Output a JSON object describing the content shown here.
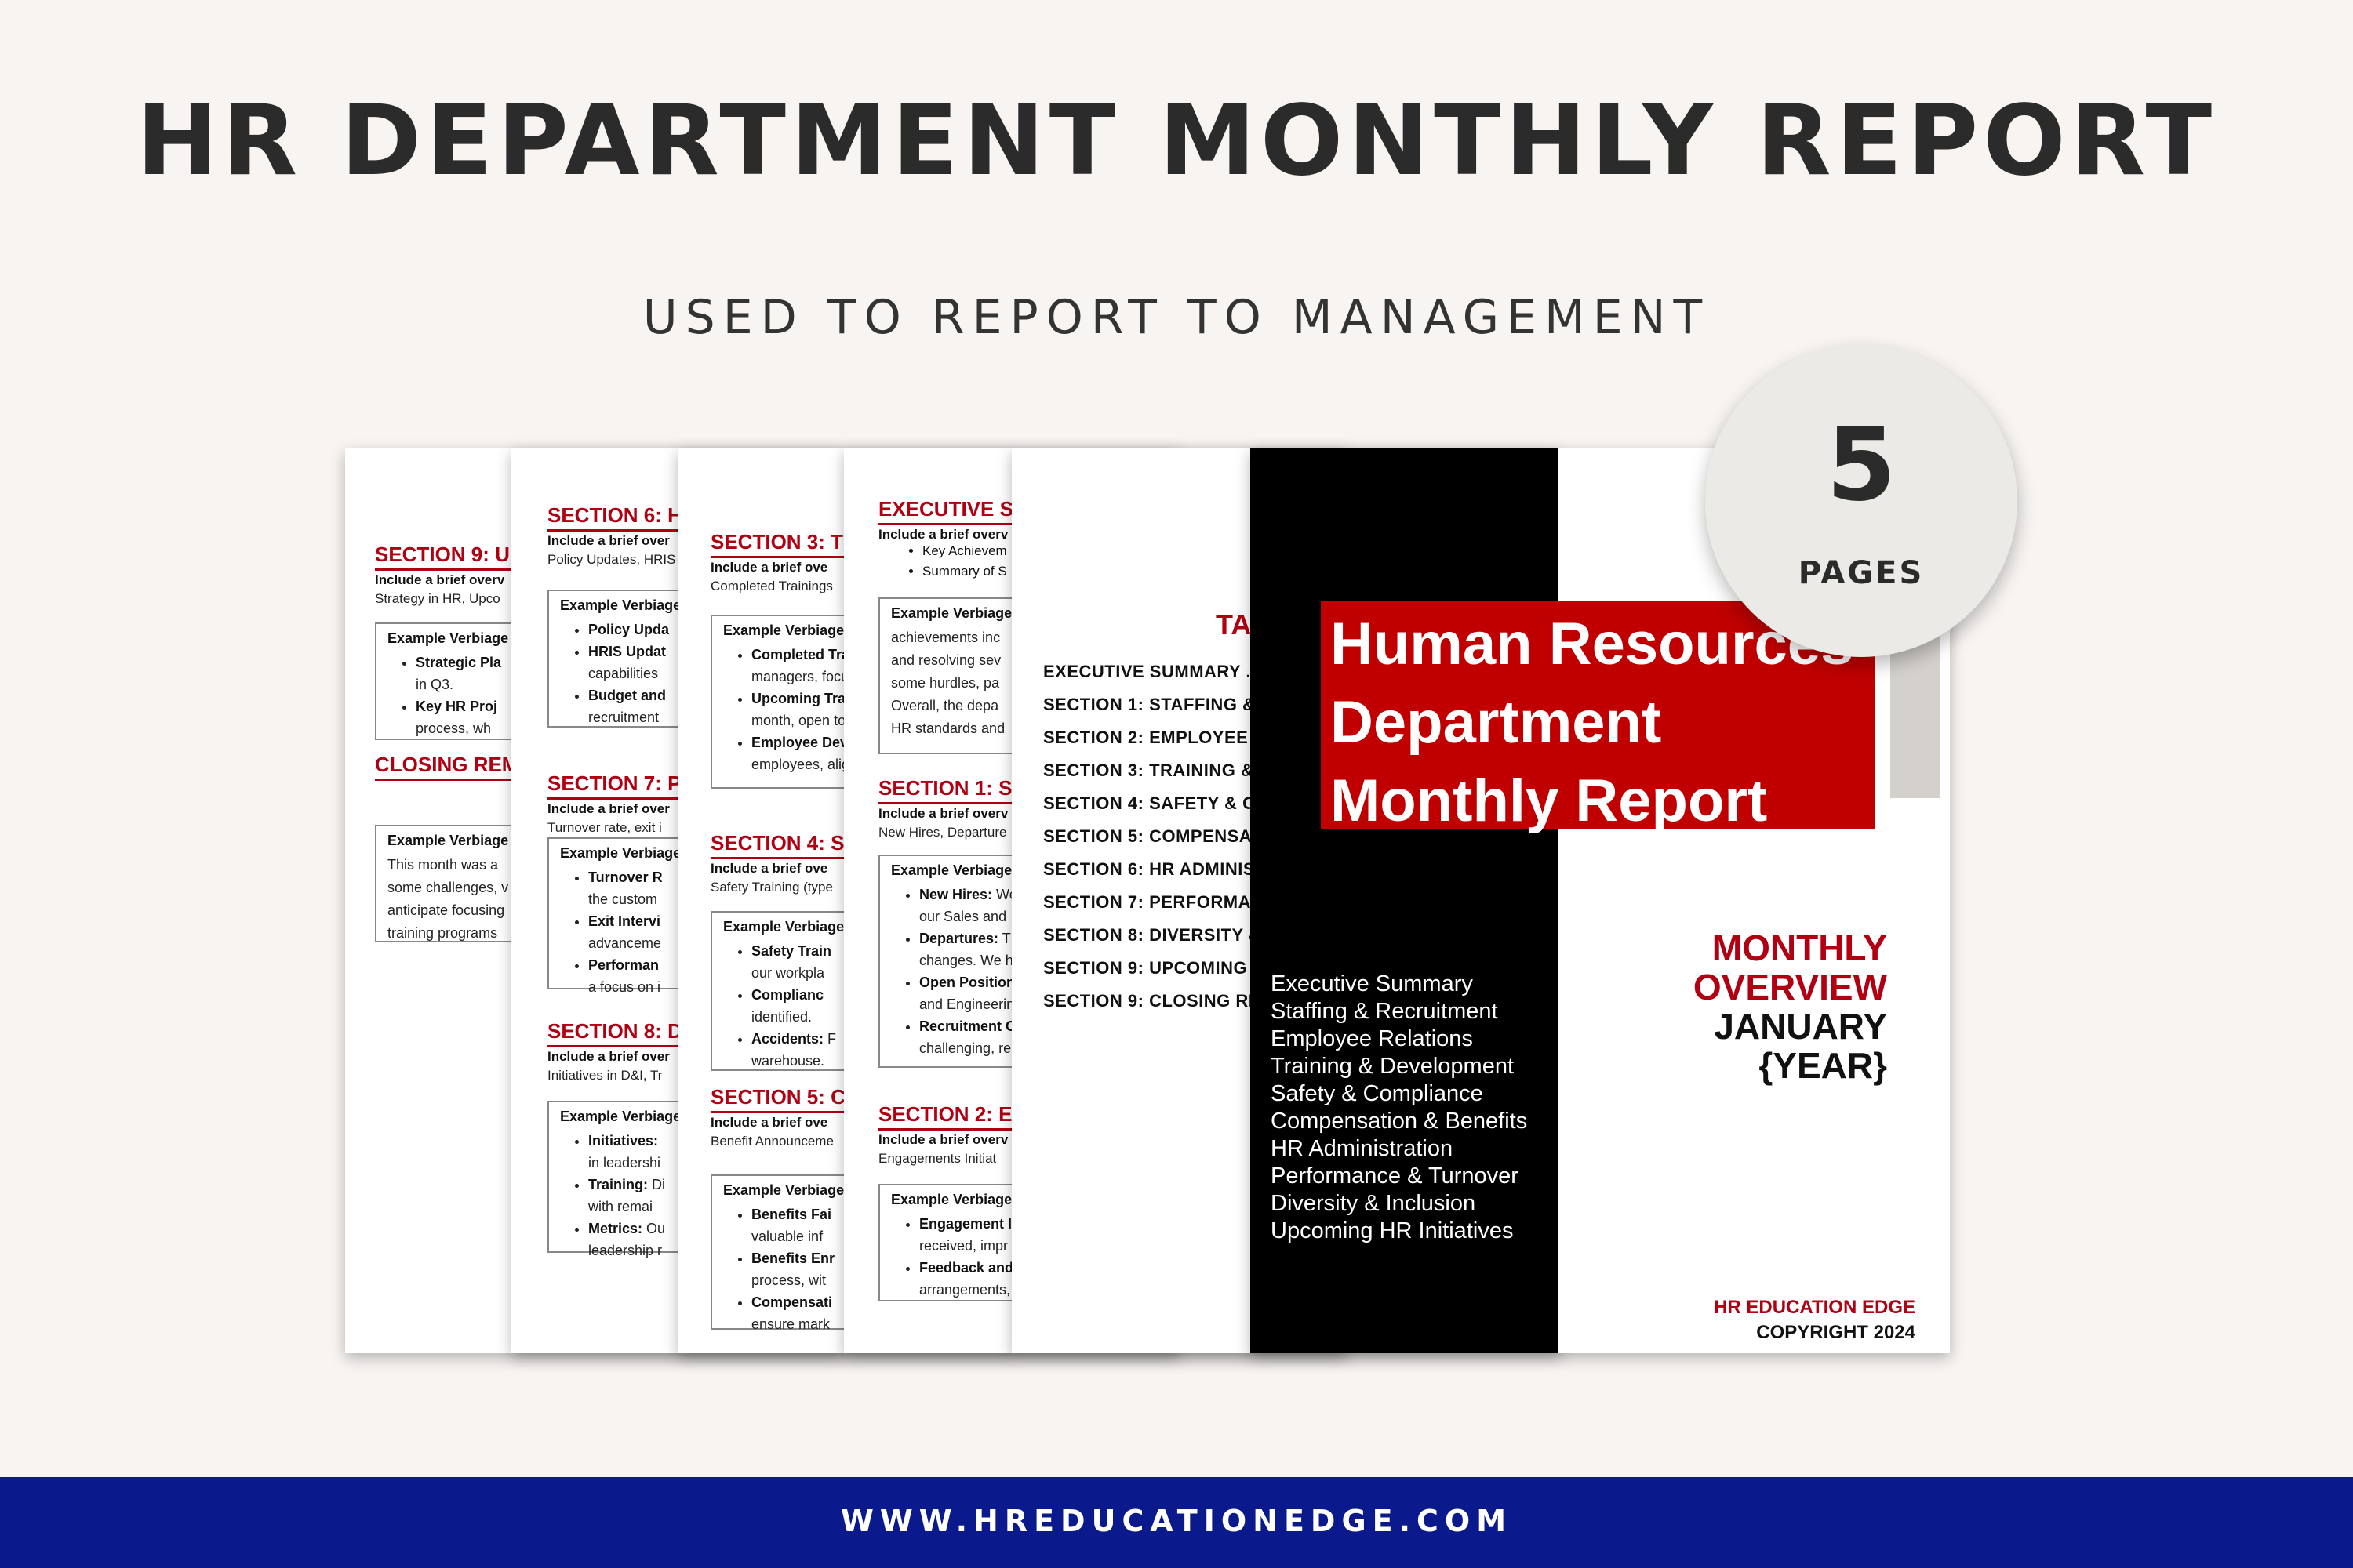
{
  "header": {
    "title": "HR DEPARTMENT MONTHLY REPORT",
    "subtitle": "USED TO REPORT TO MANAGEMENT"
  },
  "badge": {
    "number": "5",
    "label": "PAGES"
  },
  "footer": {
    "url": "WWW.HREDUCATIONEDGE.COM"
  },
  "colors": {
    "accent_red": "#b00012",
    "cover_red": "#c00000",
    "footer_blue": "#0a1a8c",
    "background": "#f8f4f2"
  },
  "page1": {
    "section_title": "SECTION 9: UP",
    "intro_bold": "Include a brief overv",
    "intro": "Strategy in HR, Upco",
    "box_title": "Example Verbiage",
    "items": [
      {
        "bold": "Strategic Pla",
        "text": "",
        "cont": "in Q3."
      },
      {
        "bold": "Key HR Proj",
        "text": "",
        "cont": "process, wh"
      }
    ],
    "closing_title": "CLOSING REM",
    "closing_box_title": "Example Verbiage",
    "closing_lines": [
      "This month was a",
      "some challenges, v",
      "anticipate focusing",
      "training programs"
    ]
  },
  "page2": {
    "s6_title": "SECTION 6: HI",
    "s6_intro_bold": "Include a brief over",
    "s6_intro": "Policy Updates, HRIS",
    "s6_box_title": "Example Verbiage",
    "s6_items": [
      {
        "bold": "Policy Upda",
        "text": "",
        "cont": ""
      },
      {
        "bold": "HRIS Updat",
        "text": "",
        "cont": "capabilities"
      },
      {
        "bold": "Budget and",
        "text": "",
        "cont": "recruitment"
      }
    ],
    "s7_title": "SECTION 7: PE",
    "s7_intro_bold": "Include a brief over",
    "s7_intro": "Turnover rate, exit i",
    "s7_box_title": "Example Verbiage",
    "s7_items": [
      {
        "bold": "Turnover R",
        "text": "",
        "cont": "the custom"
      },
      {
        "bold": "Exit Intervi",
        "text": "",
        "cont": "advanceme"
      },
      {
        "bold": "Performan",
        "text": "",
        "cont": "a focus on i"
      }
    ],
    "s8_title": "SECTION 8: DI",
    "s8_intro_bold": "Include a brief over",
    "s8_intro": "Initiatives in D&I, Tr",
    "s8_box_title": "Example Verbiage",
    "s8_items": [
      {
        "bold": "Initiatives:",
        "text": "",
        "cont": "in leadershi"
      },
      {
        "bold": "Training:",
        "text": " Di",
        "cont": "with remai"
      },
      {
        "bold": "Metrics:",
        "text": " Ou",
        "cont": "leadership r"
      }
    ]
  },
  "page3": {
    "s3_title": "SECTION 3: TR",
    "s3_intro_bold": "Include a brief ove",
    "s3_intro": "Completed Trainings",
    "s3_box_title": "Example Verbiage",
    "s3_items": [
      {
        "bold": "Completed Tra",
        "text": "",
        "cont": "managers, focu"
      },
      {
        "bold": "Upcoming Trai",
        "text": "",
        "cont": "month, open to"
      },
      {
        "bold": "Employee Dev",
        "text": "",
        "cont": "employees, alig"
      }
    ],
    "s4_title": "SECTION 4: SA",
    "s4_intro_bold": "Include a brief ove",
    "s4_intro": "Safety Training (type",
    "s4_box_title": "Example Verbiage",
    "s4_items": [
      {
        "bold": "Safety Train",
        "text": "",
        "cont": "our workpla"
      },
      {
        "bold": "Complianc",
        "text": "",
        "cont": "identified."
      },
      {
        "bold": "Accidents:",
        "text": " F",
        "cont": "warehouse."
      }
    ],
    "s5_title": "SECTION 5: CO",
    "s5_intro_bold": "Include a brief ove",
    "s5_intro": "Benefit Announceme",
    "s5_box_title": "Example Verbiage",
    "s5_items": [
      {
        "bold": "Benefits Fai",
        "text": "",
        "cont": "valuable inf"
      },
      {
        "bold": "Benefits Enr",
        "text": "",
        "cont": "process, wit"
      },
      {
        "bold": "Compensati",
        "text": "",
        "cont": "ensure mark"
      }
    ]
  },
  "page4": {
    "exec_title": "EXECUTIVE SU",
    "exec_intro_bold": "Include a brief overv",
    "exec_items": [
      "Key Achievem",
      "Summary of S"
    ],
    "exec_box_title": "Example Verbiage",
    "exec_lines": [
      "achievements inc",
      "and resolving sev",
      "some hurdles, pa",
      "Overall, the depa",
      "HR standards and"
    ],
    "s1_title": "SECTION 1: ST",
    "s1_intro_bold": "Include a brief overv",
    "s1_intro": "New Hires, Departure",
    "s1_box_title": "Example Verbiage",
    "s1_items": [
      {
        "bold": "New Hires:",
        "text": " We",
        "cont": "our Sales and"
      },
      {
        "bold": "Departures:",
        "text": " Th",
        "cont": "changes. We h"
      },
      {
        "bold": "Open Position",
        "text": "",
        "cont": "and Engineerin"
      },
      {
        "bold": "Recruitment C",
        "text": "",
        "cont": "challenging, re"
      }
    ],
    "s2_title": "SECTION 2: EM",
    "s2_intro_bold": "Include a brief overv",
    "s2_intro": "Engagements Initiat",
    "s2_box_title": "Example Verbiage",
    "s2_items": [
      {
        "bold": "Engagement In",
        "text": "",
        "cont": "received, impr"
      },
      {
        "bold": "Feedback and",
        "text": "",
        "cont": "arrangements,"
      }
    ]
  },
  "toc": {
    "title": "TA",
    "items": [
      "EXECUTIVE SUMMARY .",
      "SECTION 1: STAFFING &",
      "SECTION 2: EMPLOYEE R",
      "SECTION 3: TRAINING &",
      "SECTION 4: SAFETY & CO",
      "SECTION 5: COMPENSAT",
      "SECTION 6: HR ADMINIS",
      "SECTION 7: PERFORMAN",
      "SECTION 8: DIVERSITY &",
      "SECTION 9: UPCOMING",
      "SECTION 9: CLOSING RE"
    ]
  },
  "cover": {
    "title_lines": [
      "Human Resources",
      "Department",
      "Monthly Report"
    ],
    "sections": [
      "Executive Summary",
      "Staffing & Recruitment",
      "Employee Relations",
      "Training & Development",
      "Safety & Compliance",
      "Compensation & Benefits",
      "HR Administration",
      "Performance & Turnover",
      "Diversity & Inclusion",
      "Upcoming HR Initiatives"
    ],
    "overview_red": [
      "MONTHLY",
      "OVERVIEW"
    ],
    "overview_black": [
      "JANUARY",
      "{YEAR}"
    ],
    "brand": "HR EDUCATION EDGE",
    "copyright": "COPYRIGHT 2024"
  }
}
